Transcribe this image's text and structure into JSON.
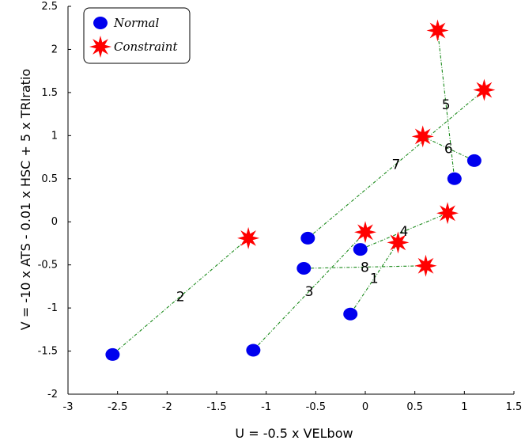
{
  "chart_data": {
    "type": "scatter",
    "xlabel": "U = -0.5 x VELbow",
    "ylabel": "V = -10 x ATS - 0.01 x HSC + 5 x TRIratio",
    "xlim": [
      -3,
      1.5
    ],
    "ylim": [
      -2,
      2.5
    ],
    "x_ticks": [
      "-3",
      "-2.5",
      "-2",
      "-1.5",
      "-1",
      "-0.5",
      "0",
      "0.5",
      "1",
      "1.5"
    ],
    "y_ticks": [
      "-2",
      "-1.5",
      "-1",
      "-0.5",
      "0",
      "0.5",
      "1",
      "1.5",
      "2",
      "2.5"
    ],
    "legend": {
      "position": "top-left",
      "entries": [
        "Normal",
        "Constraint"
      ]
    },
    "colors": {
      "normal": "#0000ee",
      "constraint": "#ff0000",
      "link": "#1a8a1a"
    },
    "pairs": [
      {
        "label": "1",
        "normal": [
          -0.15,
          -1.07
        ],
        "constraint": [
          0.33,
          -0.24
        ]
      },
      {
        "label": "2",
        "normal": [
          -2.55,
          -1.54
        ],
        "constraint": [
          -1.18,
          -0.19
        ]
      },
      {
        "label": "3",
        "normal": [
          -1.13,
          -1.49
        ],
        "constraint": [
          0.0,
          -0.12
        ]
      },
      {
        "label": "4",
        "normal": [
          -0.05,
          -0.32
        ],
        "constraint": [
          0.83,
          0.1
        ]
      },
      {
        "label": "5",
        "normal": [
          0.9,
          0.5
        ],
        "constraint": [
          0.73,
          2.22
        ]
      },
      {
        "label": "6",
        "normal": [
          1.1,
          0.71
        ],
        "constraint": [
          0.58,
          0.99
        ]
      },
      {
        "label": "7",
        "normal": [
          -0.58,
          -0.19
        ],
        "constraint": [
          1.2,
          1.53
        ]
      },
      {
        "label": "8",
        "normal": [
          -0.62,
          -0.54
        ],
        "constraint": [
          0.61,
          -0.51
        ]
      }
    ]
  }
}
